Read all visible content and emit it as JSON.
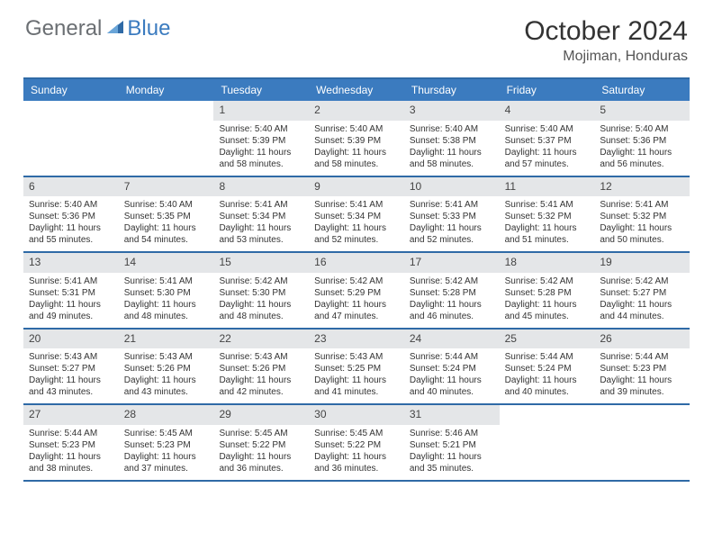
{
  "logo": {
    "part1": "General",
    "part2": "Blue"
  },
  "title": "October 2024",
  "location": "Mojiman, Honduras",
  "colors": {
    "header_bg": "#3b7bbf",
    "header_text": "#ffffff",
    "rule": "#2f6aa6",
    "daynum_bg": "#e4e6e8",
    "logo_gray": "#6b6f73",
    "logo_blue": "#3b7bbf"
  },
  "day_names": [
    "Sunday",
    "Monday",
    "Tuesday",
    "Wednesday",
    "Thursday",
    "Friday",
    "Saturday"
  ],
  "weeks": [
    [
      {
        "n": "",
        "sr": "",
        "ss": "",
        "dl": ""
      },
      {
        "n": "",
        "sr": "",
        "ss": "",
        "dl": ""
      },
      {
        "n": "1",
        "sr": "Sunrise: 5:40 AM",
        "ss": "Sunset: 5:39 PM",
        "dl": "Daylight: 11 hours and 58 minutes."
      },
      {
        "n": "2",
        "sr": "Sunrise: 5:40 AM",
        "ss": "Sunset: 5:39 PM",
        "dl": "Daylight: 11 hours and 58 minutes."
      },
      {
        "n": "3",
        "sr": "Sunrise: 5:40 AM",
        "ss": "Sunset: 5:38 PM",
        "dl": "Daylight: 11 hours and 58 minutes."
      },
      {
        "n": "4",
        "sr": "Sunrise: 5:40 AM",
        "ss": "Sunset: 5:37 PM",
        "dl": "Daylight: 11 hours and 57 minutes."
      },
      {
        "n": "5",
        "sr": "Sunrise: 5:40 AM",
        "ss": "Sunset: 5:36 PM",
        "dl": "Daylight: 11 hours and 56 minutes."
      }
    ],
    [
      {
        "n": "6",
        "sr": "Sunrise: 5:40 AM",
        "ss": "Sunset: 5:36 PM",
        "dl": "Daylight: 11 hours and 55 minutes."
      },
      {
        "n": "7",
        "sr": "Sunrise: 5:40 AM",
        "ss": "Sunset: 5:35 PM",
        "dl": "Daylight: 11 hours and 54 minutes."
      },
      {
        "n": "8",
        "sr": "Sunrise: 5:41 AM",
        "ss": "Sunset: 5:34 PM",
        "dl": "Daylight: 11 hours and 53 minutes."
      },
      {
        "n": "9",
        "sr": "Sunrise: 5:41 AM",
        "ss": "Sunset: 5:34 PM",
        "dl": "Daylight: 11 hours and 52 minutes."
      },
      {
        "n": "10",
        "sr": "Sunrise: 5:41 AM",
        "ss": "Sunset: 5:33 PM",
        "dl": "Daylight: 11 hours and 52 minutes."
      },
      {
        "n": "11",
        "sr": "Sunrise: 5:41 AM",
        "ss": "Sunset: 5:32 PM",
        "dl": "Daylight: 11 hours and 51 minutes."
      },
      {
        "n": "12",
        "sr": "Sunrise: 5:41 AM",
        "ss": "Sunset: 5:32 PM",
        "dl": "Daylight: 11 hours and 50 minutes."
      }
    ],
    [
      {
        "n": "13",
        "sr": "Sunrise: 5:41 AM",
        "ss": "Sunset: 5:31 PM",
        "dl": "Daylight: 11 hours and 49 minutes."
      },
      {
        "n": "14",
        "sr": "Sunrise: 5:41 AM",
        "ss": "Sunset: 5:30 PM",
        "dl": "Daylight: 11 hours and 48 minutes."
      },
      {
        "n": "15",
        "sr": "Sunrise: 5:42 AM",
        "ss": "Sunset: 5:30 PM",
        "dl": "Daylight: 11 hours and 48 minutes."
      },
      {
        "n": "16",
        "sr": "Sunrise: 5:42 AM",
        "ss": "Sunset: 5:29 PM",
        "dl": "Daylight: 11 hours and 47 minutes."
      },
      {
        "n": "17",
        "sr": "Sunrise: 5:42 AM",
        "ss": "Sunset: 5:28 PM",
        "dl": "Daylight: 11 hours and 46 minutes."
      },
      {
        "n": "18",
        "sr": "Sunrise: 5:42 AM",
        "ss": "Sunset: 5:28 PM",
        "dl": "Daylight: 11 hours and 45 minutes."
      },
      {
        "n": "19",
        "sr": "Sunrise: 5:42 AM",
        "ss": "Sunset: 5:27 PM",
        "dl": "Daylight: 11 hours and 44 minutes."
      }
    ],
    [
      {
        "n": "20",
        "sr": "Sunrise: 5:43 AM",
        "ss": "Sunset: 5:27 PM",
        "dl": "Daylight: 11 hours and 43 minutes."
      },
      {
        "n": "21",
        "sr": "Sunrise: 5:43 AM",
        "ss": "Sunset: 5:26 PM",
        "dl": "Daylight: 11 hours and 43 minutes."
      },
      {
        "n": "22",
        "sr": "Sunrise: 5:43 AM",
        "ss": "Sunset: 5:26 PM",
        "dl": "Daylight: 11 hours and 42 minutes."
      },
      {
        "n": "23",
        "sr": "Sunrise: 5:43 AM",
        "ss": "Sunset: 5:25 PM",
        "dl": "Daylight: 11 hours and 41 minutes."
      },
      {
        "n": "24",
        "sr": "Sunrise: 5:44 AM",
        "ss": "Sunset: 5:24 PM",
        "dl": "Daylight: 11 hours and 40 minutes."
      },
      {
        "n": "25",
        "sr": "Sunrise: 5:44 AM",
        "ss": "Sunset: 5:24 PM",
        "dl": "Daylight: 11 hours and 40 minutes."
      },
      {
        "n": "26",
        "sr": "Sunrise: 5:44 AM",
        "ss": "Sunset: 5:23 PM",
        "dl": "Daylight: 11 hours and 39 minutes."
      }
    ],
    [
      {
        "n": "27",
        "sr": "Sunrise: 5:44 AM",
        "ss": "Sunset: 5:23 PM",
        "dl": "Daylight: 11 hours and 38 minutes."
      },
      {
        "n": "28",
        "sr": "Sunrise: 5:45 AM",
        "ss": "Sunset: 5:23 PM",
        "dl": "Daylight: 11 hours and 37 minutes."
      },
      {
        "n": "29",
        "sr": "Sunrise: 5:45 AM",
        "ss": "Sunset: 5:22 PM",
        "dl": "Daylight: 11 hours and 36 minutes."
      },
      {
        "n": "30",
        "sr": "Sunrise: 5:45 AM",
        "ss": "Sunset: 5:22 PM",
        "dl": "Daylight: 11 hours and 36 minutes."
      },
      {
        "n": "31",
        "sr": "Sunrise: 5:46 AM",
        "ss": "Sunset: 5:21 PM",
        "dl": "Daylight: 11 hours and 35 minutes."
      },
      {
        "n": "",
        "sr": "",
        "ss": "",
        "dl": ""
      },
      {
        "n": "",
        "sr": "",
        "ss": "",
        "dl": ""
      }
    ]
  ]
}
